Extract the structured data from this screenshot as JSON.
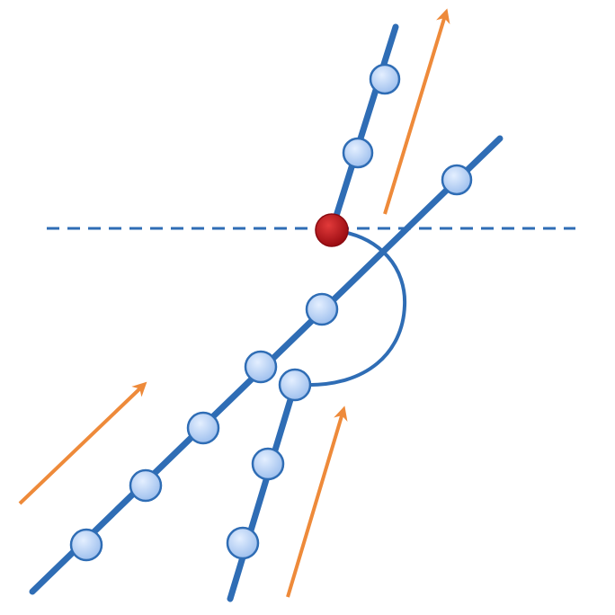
{
  "diagram": {
    "colors": {
      "line": "#2f6db5",
      "node_fill": "#b9d3f3",
      "node_stroke": "#2f6db5",
      "pivot_fill": "#c0141c",
      "arrow": "#ee8a3a",
      "background": "#ffffff"
    },
    "elements": {
      "main_line": "main-track-line",
      "upper_branch": "upper-branch-line",
      "lower_branch": "lower-branch-line",
      "reference_line": "dashed-horizontal-line",
      "angle_arc": "angle-arc",
      "pivot": "pivot-node",
      "arrows": [
        "orange-arrow-top-right",
        "orange-arrow-left",
        "orange-arrow-bottom"
      ]
    }
  }
}
